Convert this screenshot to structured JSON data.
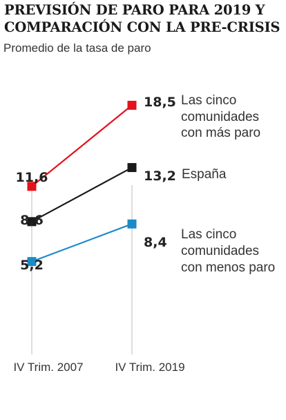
{
  "chart_data": {
    "type": "line",
    "title": "PREVISIÓN DE PARO PARA 2019 Y COMPARACIÓN CON LA PRE-CRISIS",
    "subtitle": "Promedio de la tasa de paro",
    "categories": [
      "IV Trim. 2007",
      "IV Trim. 2019"
    ],
    "series": [
      {
        "name": "Las cinco comunidades con más paro",
        "name_lines": [
          "Las cinco",
          "comunidades",
          "con más paro"
        ],
        "values": [
          11.6,
          18.5
        ],
        "labels": [
          "11,6",
          "18,5"
        ],
        "color": "#e3121b"
      },
      {
        "name": "España",
        "name_lines": [
          "España"
        ],
        "values": [
          8.6,
          13.2
        ],
        "labels": [
          "8,6",
          "13,2"
        ],
        "color": "#1a1a1a"
      },
      {
        "name": "Las cinco comunidades con menos paro",
        "name_lines": [
          "Las cinco",
          "comunidades",
          "con menos paro"
        ],
        "values": [
          5.2,
          8.4
        ],
        "labels": [
          "5,2",
          "8,4"
        ],
        "color": "#1b8ac7"
      }
    ],
    "axis_color": "#bbbbbb",
    "grid": false,
    "legend": "direct-labels-right"
  }
}
